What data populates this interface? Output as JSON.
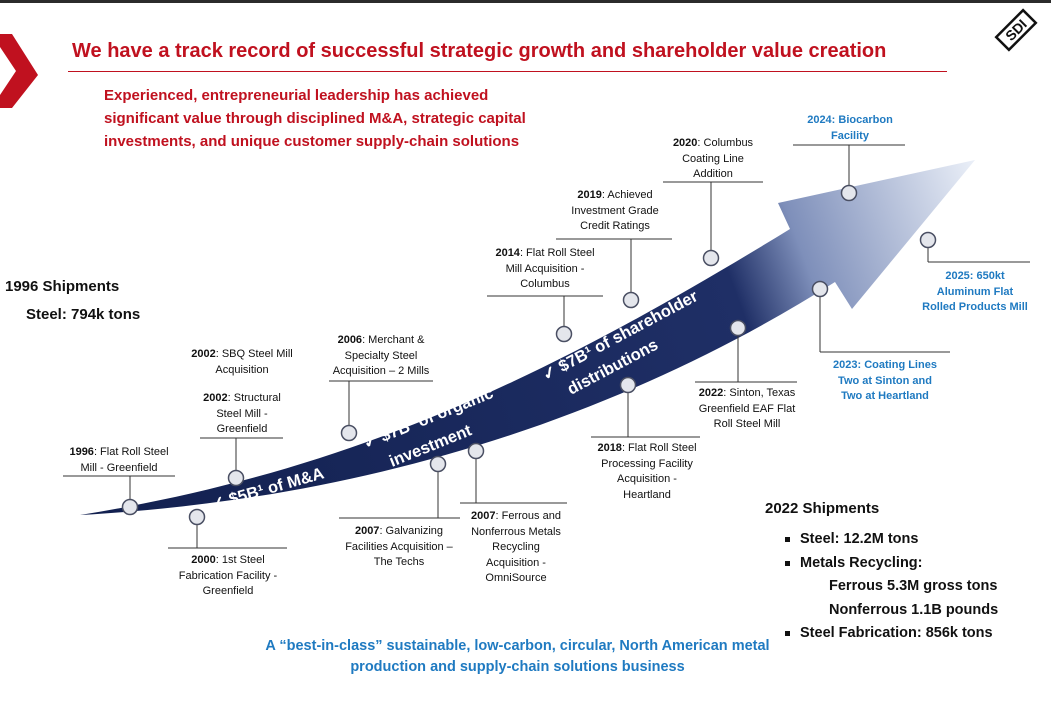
{
  "title": "We have a track record of successful strategic growth and shareholder value creation",
  "intro": "Experienced, entrepreneurial leadership has achieved significant value through disciplined M&A, strategic capital investments, and unique customer supply-chain solutions",
  "logo_text": "SDI",
  "shipments_1996": {
    "heading": "1996 Shipments",
    "steel": "Steel: 794k tons"
  },
  "arrow_labels": {
    "ma": "✓ $5B¹ of M&A",
    "organic_line1": "✓ $7B¹ of organic",
    "organic_line2": "investment",
    "shareholder_line1": "✓ $7B¹ of shareholder",
    "shareholder_line2": "distributions"
  },
  "milestones": {
    "m1996": {
      "year": "1996",
      "line1": ": Flat Roll Steel",
      "line2": "Mill - Greenfield"
    },
    "m2000": {
      "year": "2000",
      "line1": ": 1st Steel",
      "line2": "Fabrication Facility -",
      "line3": "Greenfield"
    },
    "m2002a": {
      "year": "2002",
      "line1": ": SBQ Steel Mill",
      "line2": "Acquisition"
    },
    "m2002b": {
      "year": "2002",
      "line1": ": Structural",
      "line2": "Steel Mill -",
      "line3": "Greenfield"
    },
    "m2006": {
      "year": "2006",
      "line1": ": Merchant &",
      "line2": "Specialty Steel",
      "line3": "Acquisition – 2 Mills"
    },
    "m2007a": {
      "year": "2007",
      "line1": ": Galvanizing",
      "line2": "Facilities Acquisition –",
      "line3": "The Techs"
    },
    "m2007b": {
      "year": "2007",
      "line1": ": Ferrous and",
      "line2": "Nonferrous Metals",
      "line3": "Recycling",
      "line4": "Acquisition -",
      "line5": "OmniSource"
    },
    "m2014": {
      "year": "2014",
      "line1": ": Flat Roll Steel",
      "line2": "Mill Acquisition -",
      "line3": "Columbus"
    },
    "m2018": {
      "year": "2018",
      "line1": ": Flat Roll Steel",
      "line2": "Processing Facility",
      "line3": "Acquisition -",
      "line4": "Heartland"
    },
    "m2019": {
      "year": "2019",
      "line1": ": Achieved",
      "line2": "Investment Grade",
      "line3": "Credit Ratings"
    },
    "m2020": {
      "year": "2020",
      "line1": ": Columbus",
      "line2": "Coating Line",
      "line3": "Addition"
    },
    "m2022": {
      "year": "2022",
      "line1": ": Sinton, Texas",
      "line2": "Greenfield EAF Flat",
      "line3": "Roll Steel Mill"
    },
    "m2023": {
      "line1": "2023: Coating Lines",
      "line2": "Two at Sinton and",
      "line3": "Two at Heartland"
    },
    "m2024": {
      "line1": "2024: Biocarbon",
      "line2": "Facility"
    },
    "m2025": {
      "line1": "2025: 650kt",
      "line2": "Aluminum Flat",
      "line3": "Rolled Products Mill"
    }
  },
  "shipments_2022": {
    "heading": "2022 Shipments",
    "steel": "Steel: 12.2M tons",
    "recycling": "Metals Recycling:",
    "ferrous": "Ferrous 5.3M gross tons",
    "nonferrous": "Nonferrous 1.1B pounds",
    "fabrication": "Steel Fabrication: 856k tons"
  },
  "footer": "A “best-in-class” sustainable, low-carbon, circular, North American metal production and supply-chain solutions business",
  "colors": {
    "brand_red": "#c0111f",
    "arrow_navy": "#1b2a5e",
    "accent_blue": "#1f7ac1"
  }
}
